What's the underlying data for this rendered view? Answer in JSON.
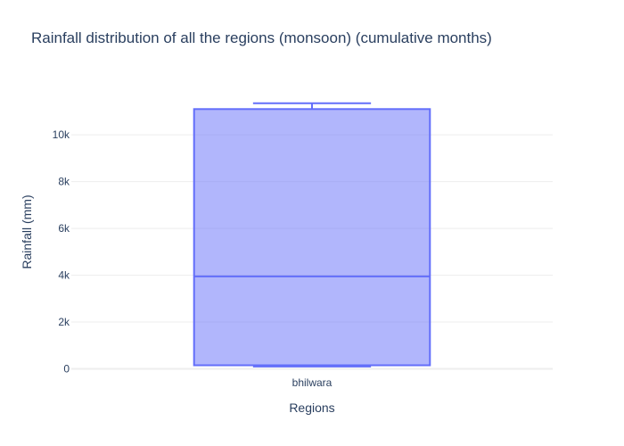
{
  "chart_data": {
    "type": "box",
    "title": "Rainfall distribution of all the regions (monsoon) (cumulative months)",
    "xlabel": "Regions",
    "ylabel": "Rainfall (mm)",
    "categories": [
      "bhilwara"
    ],
    "boxes": [
      {
        "category": "bhilwara",
        "min": 100,
        "q1": 150,
        "median": 3950,
        "q3": 11100,
        "max": 11350
      }
    ],
    "ylim": [
      -250,
      11950
    ],
    "y_ticks": [
      0,
      2000,
      4000,
      6000,
      8000,
      10000
    ],
    "y_tick_labels": [
      "0",
      "2k",
      "4k",
      "6k",
      "8k",
      "10k"
    ],
    "grid": true,
    "colors": {
      "box_fill": "#636efa",
      "box_line": "#636efa",
      "text": "#2a3f5f",
      "grid": "#eeeeee"
    }
  }
}
